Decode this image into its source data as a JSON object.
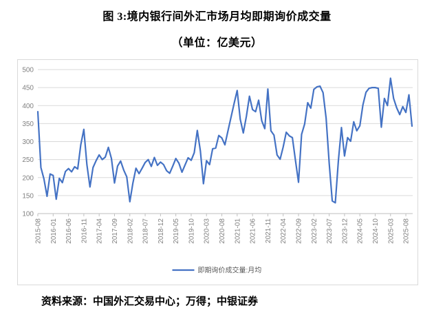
{
  "title": {
    "line1": "图 3:境内银行间外汇市场月均即期询价成交量",
    "line2": "（单位：亿美元）"
  },
  "footer": {
    "source": "资料来源：中国外汇交易中心；万得；中银证券"
  },
  "chart_data": {
    "type": "line",
    "title": "",
    "xlabel": "",
    "ylabel": "",
    "ylim": [
      100,
      500
    ],
    "y_ticks": [
      100,
      150,
      200,
      250,
      300,
      350,
      400,
      450,
      500
    ],
    "grid": true,
    "legend_position": "bottom",
    "legend_label": "即期询价成交量:月均",
    "line_color": "#4472C4",
    "axis_label_color": "#808080",
    "legend_text_color": "#595959",
    "gridline_color": "#D9D9D9",
    "axis_line_color": "#BFBFBF",
    "x_tick_every": 5,
    "categories": [
      "2015-08",
      "2015-09",
      "2015-10",
      "2015-11",
      "2015-12",
      "2016-01",
      "2016-02",
      "2016-03",
      "2016-04",
      "2016-05",
      "2016-06",
      "2016-07",
      "2016-08",
      "2016-09",
      "2016-10",
      "2016-11",
      "2016-12",
      "2017-01",
      "2017-02",
      "2017-03",
      "2017-04",
      "2017-05",
      "2017-06",
      "2017-07",
      "2017-08",
      "2017-09",
      "2017-10",
      "2017-11",
      "2017-12",
      "2018-01",
      "2018-02",
      "2018-03",
      "2018-04",
      "2018-05",
      "2018-06",
      "2018-07",
      "2018-08",
      "2018-09",
      "2018-10",
      "2018-11",
      "2018-12",
      "2019-01",
      "2019-02",
      "2019-03",
      "2019-04",
      "2019-05",
      "2019-06",
      "2019-07",
      "2019-08",
      "2019-09",
      "2019-10",
      "2019-11",
      "2019-12",
      "2020-01",
      "2020-02",
      "2020-03",
      "2020-04",
      "2020-05",
      "2020-06",
      "2020-07",
      "2020-08",
      "2020-09",
      "2020-10",
      "2020-11",
      "2020-12",
      "2021-01",
      "2021-02",
      "2021-03",
      "2021-04",
      "2021-05",
      "2021-06",
      "2021-07",
      "2021-08",
      "2021-09",
      "2021-10",
      "2021-11",
      "2021-12",
      "2022-01",
      "2022-02",
      "2022-03",
      "2022-04",
      "2022-05",
      "2022-06",
      "2022-07",
      "2022-08",
      "2022-09",
      "2022-10",
      "2022-11",
      "2022-12",
      "2023-01",
      "2023-02",
      "2023-03",
      "2023-04",
      "2023-05",
      "2023-06",
      "2023-07",
      "2023-08",
      "2023-09",
      "2023-10",
      "2023-11",
      "2023-12",
      "2024-01",
      "2024-02",
      "2024-03",
      "2024-04",
      "2024-05",
      "2024-06",
      "2024-07",
      "2024-08",
      "2024-09",
      "2024-10",
      "2024-11",
      "2024-12",
      "2025-01",
      "2025-02",
      "2025-03",
      "2025-04",
      "2025-05",
      "2025-06",
      "2025-07",
      "2025-08",
      "2025-09",
      "2025-10"
    ],
    "series": [
      {
        "name": "即期询价成交量:月均",
        "values": [
          383,
          228,
          196,
          148,
          210,
          206,
          140,
          198,
          186,
          217,
          225,
          216,
          230,
          224,
          291,
          334,
          236,
          174,
          228,
          247,
          263,
          250,
          257,
          284,
          253,
          185,
          232,
          246,
          221,
          202,
          133,
          185,
          226,
          211,
          226,
          242,
          250,
          231,
          256,
          234,
          243,
          236,
          219,
          212,
          232,
          253,
          240,
          215,
          235,
          255,
          248,
          269,
          331,
          274,
          183,
          247,
          236,
          280,
          282,
          317,
          310,
          291,
          330,
          368,
          406,
          442,
          362,
          324,
          370,
          426,
          389,
          383,
          415,
          358,
          336,
          446,
          330,
          318,
          263,
          251,
          285,
          326,
          316,
          311,
          248,
          187,
          320,
          349,
          408,
          393,
          445,
          452,
          454,
          436,
          365,
          240,
          135,
          130,
          247,
          339,
          260,
          311,
          301,
          355,
          330,
          344,
          402,
          437,
          448,
          450,
          450,
          448,
          340,
          420,
          400,
          476,
          420,
          394,
          375,
          397,
          381,
          430,
          343
        ]
      }
    ]
  }
}
